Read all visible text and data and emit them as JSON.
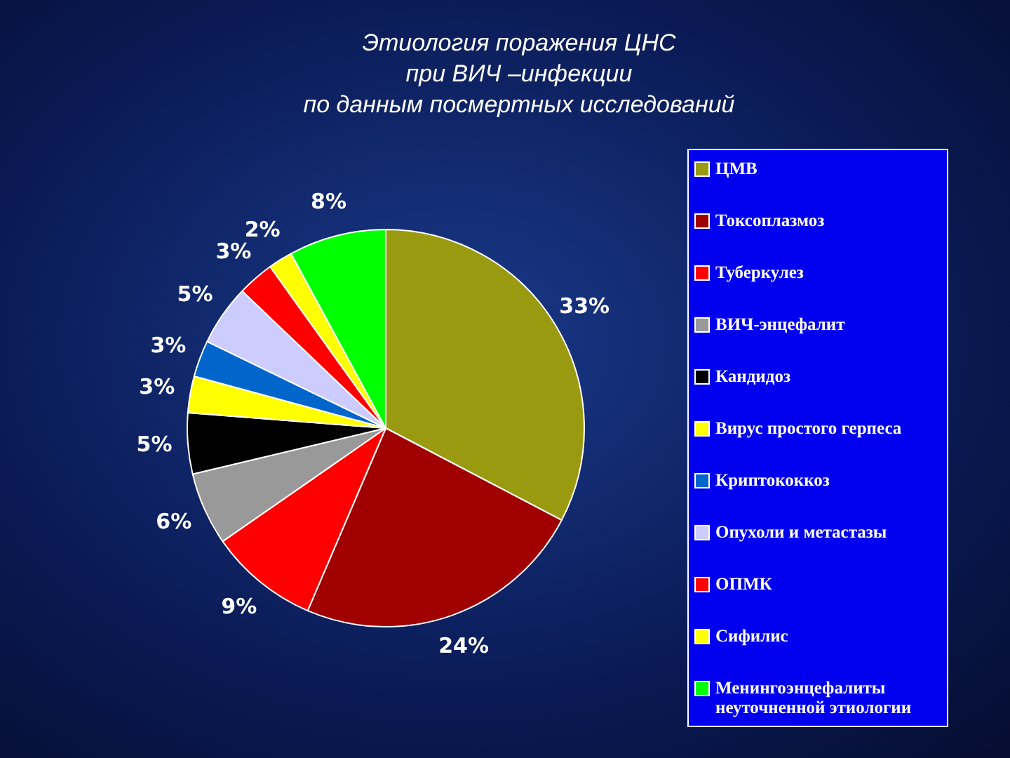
{
  "chart_data": {
    "type": "pie",
    "title": "Этиология поражения ЦНС\nпри ВИЧ –инфекции\nпо данным посмертных исследований",
    "categories": [
      "ЦМВ",
      "Токсоплазмоз",
      "Туберкулез",
      "ВИЧ-энцефалит",
      "Кандидоз",
      "Вирус простого герпеса",
      "Криптококкоз",
      "Опухоли и метастазы",
      "ОПМК",
      "Сифилис",
      "Менингоэнцефалиты неуточненной этиологии"
    ],
    "values": [
      33,
      24,
      9,
      6,
      5,
      3,
      3,
      5,
      3,
      2,
      8
    ],
    "value_labels": [
      "33%",
      "24%",
      "9%",
      "6%",
      "5%",
      "3%",
      "3%",
      "5%",
      "3%",
      "2%",
      "8%"
    ],
    "colors": [
      "#9a9a10",
      "#a00000",
      "#ff0000",
      "#999999",
      "#000000",
      "#ffff00",
      "#0066cc",
      "#ccccff",
      "#ff0000",
      "#ffff00",
      "#00ff00"
    ],
    "legend": "right"
  }
}
